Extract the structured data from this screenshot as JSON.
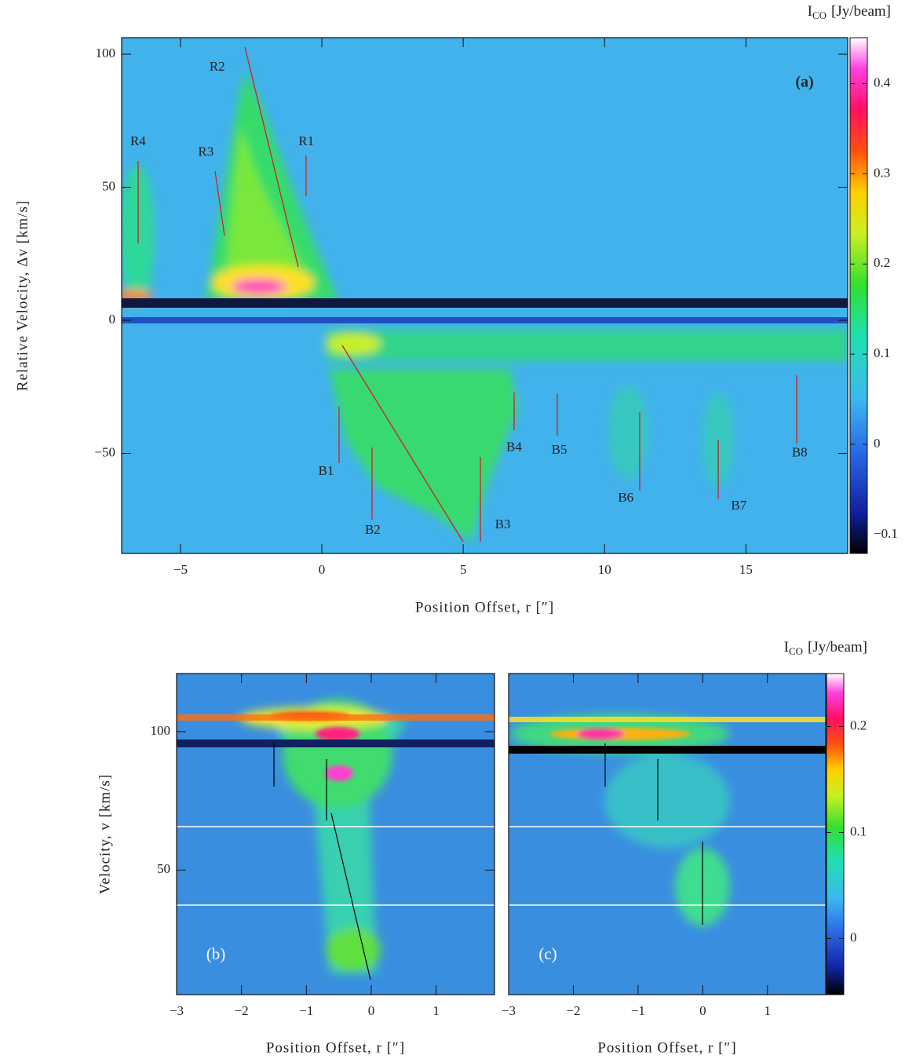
{
  "chart_data": [
    {
      "type": "heatmap",
      "panel_label": "(a)",
      "xlabel": "Position Offset, r [″]",
      "ylabel": "Relative Velocity, Δv [km/s]",
      "xlim": [
        -7.08,
        18.6
      ],
      "ylim": [
        -87.6,
        106.2
      ],
      "xticks": [
        {
          "value": -5,
          "label": "−5"
        },
        0,
        5,
        10,
        15
      ],
      "yticks": [
        {
          "value": -50,
          "label": "−50"
        },
        0,
        50,
        100
      ],
      "colorbar": {
        "symbol": "I",
        "subscript": "CO",
        "unit": "[Jy/beam]",
        "lim": [
          -0.121,
          0.451
        ],
        "ticks": [
          {
            "value": -0.1,
            "label": "−0.1"
          },
          0,
          0.1,
          0.2,
          0.3,
          0.4
        ]
      },
      "annotations": [
        {
          "text": "R4",
          "x": -6.5,
          "y": 67
        },
        {
          "text": "R3",
          "x": -4.1,
          "y": 63
        },
        {
          "text": "R2",
          "x": -3.7,
          "y": 95
        },
        {
          "text": "R1",
          "x": -0.55,
          "y": 67
        },
        {
          "text": "B1",
          "x": 0.15,
          "y": -57
        },
        {
          "text": "B2",
          "x": 1.8,
          "y": -79
        },
        {
          "text": "B3",
          "x": 6.4,
          "y": -77
        },
        {
          "text": "B4",
          "x": 6.8,
          "y": -48
        },
        {
          "text": "B5",
          "x": 8.4,
          "y": -49
        },
        {
          "text": "B6",
          "x": 10.75,
          "y": -67
        },
        {
          "text": "B7",
          "x": 14.75,
          "y": -70
        },
        {
          "text": "B8",
          "x": 16.9,
          "y": -50
        }
      ]
    },
    {
      "type": "heatmap",
      "panel_label": "(b)",
      "xlabel": "Position Offset, r [″]",
      "ylabel": "Velocity, v [km/s]",
      "xlim": [
        -3,
        1.9
      ],
      "ylim": [
        5,
        121
      ],
      "xticks": [
        {
          "value": -3,
          "label": "−3"
        },
        {
          "value": -2,
          "label": "−2"
        },
        {
          "value": -1,
          "label": "−1"
        },
        0,
        1
      ],
      "yticks": [
        50,
        100
      ]
    },
    {
      "type": "heatmap",
      "panel_label": "(c)",
      "xlabel": "Position Offset, r [″]",
      "xlim": [
        -3,
        1.9
      ],
      "ylim": [
        5,
        121
      ],
      "xticks": [
        {
          "value": -3,
          "label": "−3"
        },
        {
          "value": -2,
          "label": "−2"
        },
        {
          "value": -1,
          "label": "−1"
        },
        0,
        1
      ],
      "colorbar": {
        "symbol": "I",
        "subscript": "CO",
        "unit": "[Jy/beam]",
        "lim": [
          -0.053,
          0.25
        ],
        "ticks": [
          0,
          0.1,
          0.2
        ]
      }
    }
  ]
}
